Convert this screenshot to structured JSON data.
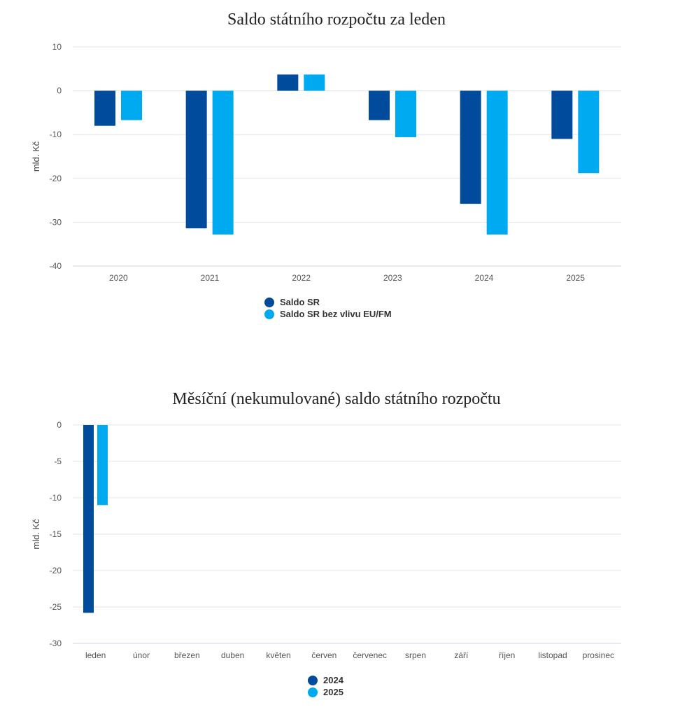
{
  "colors": {
    "series1": "#004b9b",
    "series2": "#00aaf0",
    "grid": "#e6e6e6",
    "axis": "#ccd6eb",
    "tick_text": "#555555"
  },
  "chart_data": [
    {
      "type": "bar",
      "title": "Saldo státního rozpočtu za leden",
      "ylabel": "mld. Kč",
      "xlabel": "",
      "ylim": [
        -40,
        10
      ],
      "yticks": [
        10,
        0,
        -10,
        -20,
        -30,
        -40
      ],
      "categories": [
        "2020",
        "2021",
        "2022",
        "2023",
        "2024",
        "2025"
      ],
      "series": [
        {
          "name": "Saldo SR",
          "color": "#004b9b",
          "values": [
            -8.0,
            -31.4,
            3.7,
            -6.7,
            -25.8,
            -11.0
          ]
        },
        {
          "name": "Saldo SR bez vlivu EU/FM",
          "color": "#00aaf0",
          "values": [
            -6.7,
            -32.8,
            3.7,
            -10.6,
            -32.8,
            -18.8
          ]
        }
      ],
      "grid": true,
      "legend": "bottom-center"
    },
    {
      "type": "bar",
      "title": "Měsíční (nekumulované) saldo státního rozpočtu",
      "ylabel": "mld. Kč",
      "xlabel": "",
      "ylim": [
        -30,
        0
      ],
      "yticks": [
        0,
        -5,
        -10,
        -15,
        -20,
        -25,
        -30
      ],
      "categories": [
        "leden",
        "únor",
        "březen",
        "duben",
        "květen",
        "červen",
        "červenec",
        "srpen",
        "září",
        "říjen",
        "listopad",
        "prosinec"
      ],
      "series": [
        {
          "name": "2024",
          "color": "#004b9b",
          "values": [
            -25.8,
            null,
            null,
            null,
            null,
            null,
            null,
            null,
            null,
            null,
            null,
            null
          ]
        },
        {
          "name": "2025",
          "color": "#00aaf0",
          "values": [
            -11.0,
            null,
            null,
            null,
            null,
            null,
            null,
            null,
            null,
            null,
            null,
            null
          ]
        }
      ],
      "grid": true,
      "legend": "bottom-center"
    }
  ]
}
